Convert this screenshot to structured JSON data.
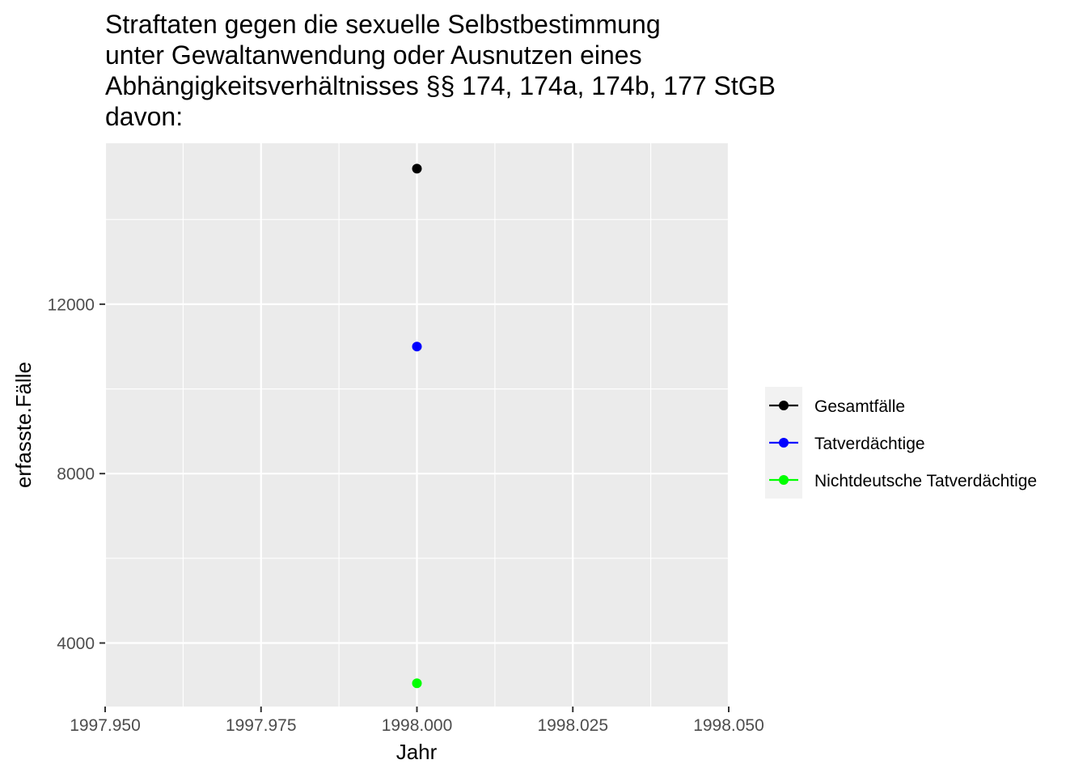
{
  "chart_data": {
    "type": "scatter",
    "title_lines": [
      "Straftaten gegen die sexuelle Selbstbestimmung",
      "unter Gewaltanwendung oder Ausnutzen eines",
      "Abhängigkeitsverhältnisses §§ 174, 174a, 174b, 177 StGB",
      "davon:"
    ],
    "xlabel": "Jahr",
    "ylabel": "erfasste.Fälle",
    "xlim": [
      1997.95,
      1998.05
    ],
    "ylim": [
      2500,
      15800
    ],
    "x_ticks": [
      1997.95,
      1997.975,
      1998.0,
      1998.025,
      1998.05
    ],
    "x_tick_labels": [
      "1997.950",
      "1997.975",
      "1998.000",
      "1998.025",
      "1998.050"
    ],
    "y_ticks": [
      4000,
      8000,
      12000
    ],
    "y_tick_labels": [
      "4000",
      "8000",
      "12000"
    ],
    "grid": true,
    "legend_position": "right",
    "series": [
      {
        "name": "Gesamtfälle",
        "color": "#000000",
        "points": [
          {
            "x": 1998.0,
            "y": 15200
          }
        ]
      },
      {
        "name": "Tatverdächtige",
        "color": "#0000ff",
        "points": [
          {
            "x": 1998.0,
            "y": 11000
          }
        ]
      },
      {
        "name": "Nichtdeutsche Tatverdächtige",
        "color": "#00ff00",
        "points": [
          {
            "x": 1998.0,
            "y": 3050
          }
        ]
      }
    ]
  }
}
